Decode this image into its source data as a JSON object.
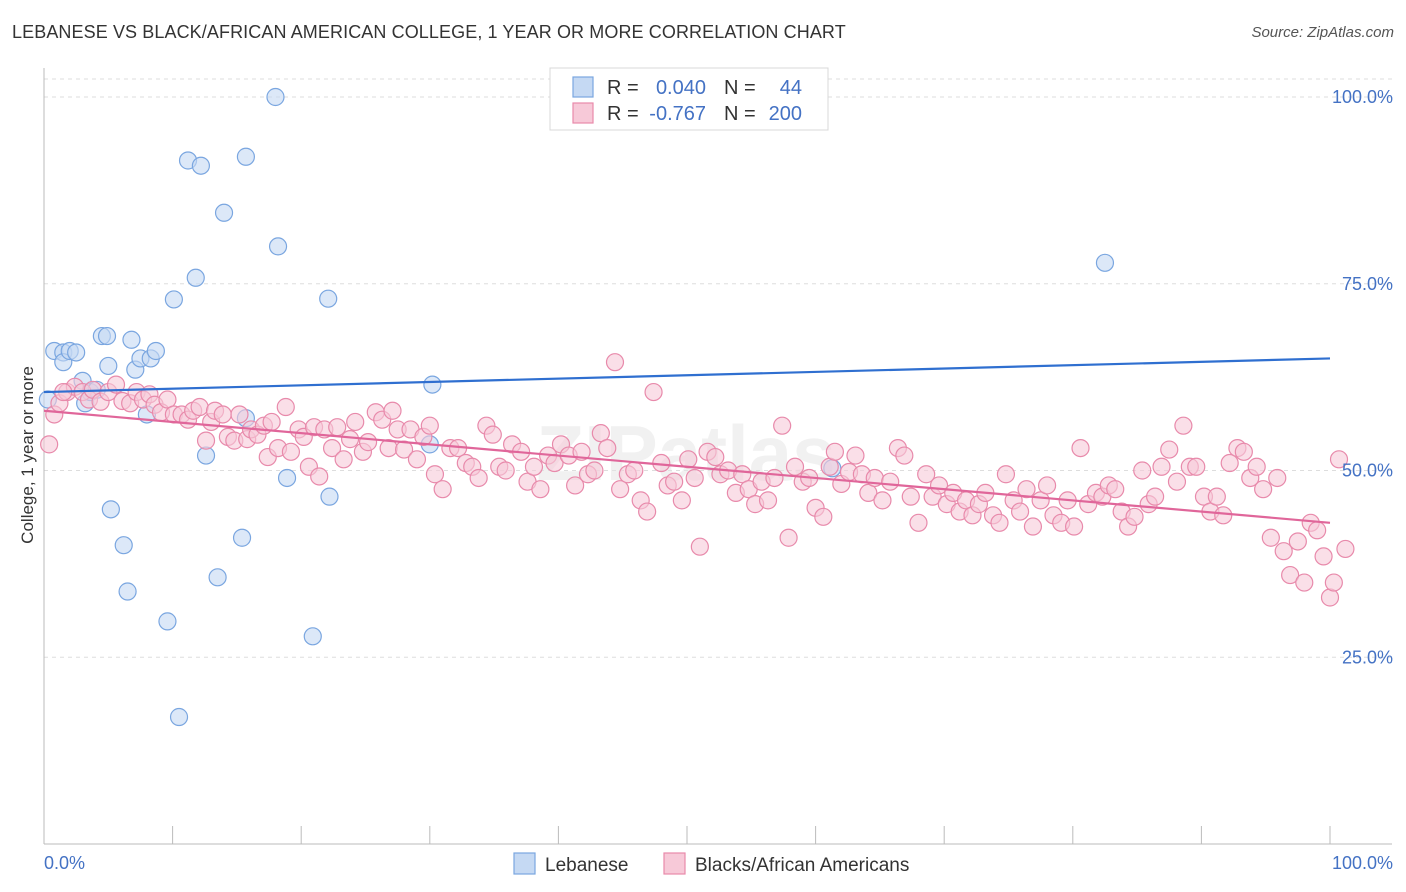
{
  "title": "LEBANESE VS BLACK/AFRICAN AMERICAN COLLEGE, 1 YEAR OR MORE CORRELATION CHART",
  "source": "Source: ZipAtlas.com",
  "watermark": "ZIPatlas",
  "chart_data": {
    "type": "scatter",
    "ylabel": "College, 1 year or more",
    "xlim": [
      0,
      100
    ],
    "ylim": [
      0,
      105
    ],
    "x_ticks": [
      "0.0%",
      "100.0%"
    ],
    "y_ticks": [
      {
        "value": 25,
        "label": "25.0%"
      },
      {
        "value": 50,
        "label": "50.0%"
      },
      {
        "value": 75,
        "label": "75.0%"
      },
      {
        "value": 100,
        "label": "100.0%"
      }
    ],
    "grid": true,
    "legend_position": "top-center",
    "stats": [
      {
        "r_label": "R =",
        "r": "0.040",
        "n_label": "N =",
        "n": "44"
      },
      {
        "r_label": "R =",
        "r": "-0.767",
        "n_label": "N =",
        "n": "200"
      }
    ],
    "series": [
      {
        "name": "Lebanese",
        "color": "#7aa6e0",
        "fill": "#c5d9f3",
        "trend": {
          "color": "#2f6fd0",
          "x": [
            0,
            100
          ],
          "y": [
            60.5,
            65.0
          ]
        },
        "points": [
          [
            0.3,
            59.5
          ],
          [
            0.8,
            66
          ],
          [
            1.5,
            65.8
          ],
          [
            1.5,
            64.5
          ],
          [
            2,
            66
          ],
          [
            2.5,
            65.8
          ],
          [
            3,
            62
          ],
          [
            3.2,
            59
          ],
          [
            3.6,
            60.5
          ],
          [
            4.1,
            60.8
          ],
          [
            4.5,
            68
          ],
          [
            4.9,
            68
          ],
          [
            5,
            64
          ],
          [
            6.8,
            67.5
          ],
          [
            7.1,
            63.5
          ],
          [
            7.5,
            65
          ],
          [
            8,
            57.5
          ],
          [
            8.3,
            65
          ],
          [
            8.7,
            66
          ],
          [
            9.6,
            29.8
          ],
          [
            10.5,
            17
          ],
          [
            11.2,
            91.5
          ],
          [
            12.2,
            90.8
          ],
          [
            11.8,
            75.8
          ],
          [
            10.1,
            72.9
          ],
          [
            12.6,
            52
          ],
          [
            13.5,
            35.7
          ],
          [
            14,
            84.5
          ],
          [
            15.4,
            41
          ],
          [
            15.7,
            57
          ],
          [
            15.7,
            92
          ],
          [
            18,
            100
          ],
          [
            18.2,
            80
          ],
          [
            18.9,
            49
          ],
          [
            20.9,
            27.8
          ],
          [
            22.1,
            73
          ],
          [
            22.2,
            46.5
          ],
          [
            30,
            53.5
          ],
          [
            30.2,
            61.5
          ],
          [
            5.2,
            44.8
          ],
          [
            6.2,
            40
          ],
          [
            6.5,
            33.8
          ],
          [
            61.3,
            50.3
          ],
          [
            82.5,
            77.8
          ]
        ]
      },
      {
        "name": "Blacks/African Americans",
        "color": "#e88aab",
        "fill": "#f7c9d8",
        "trend": {
          "color": "#e0669a",
          "x": [
            0,
            100
          ],
          "y": [
            58,
            43
          ]
        },
        "points": [
          [
            0.4,
            53.5
          ],
          [
            0.8,
            57.5
          ],
          [
            1.2,
            59
          ],
          [
            1.8,
            60.5
          ],
          [
            2.4,
            61.2
          ],
          [
            3,
            60.5
          ],
          [
            3.5,
            59.5
          ],
          [
            3.8,
            60.8
          ],
          [
            4.4,
            59.2
          ],
          [
            5,
            60.5
          ],
          [
            5.6,
            61.5
          ],
          [
            6.1,
            59.3
          ],
          [
            6.7,
            59
          ],
          [
            7.2,
            60.5
          ],
          [
            7.7,
            59.5
          ],
          [
            8.2,
            60.2
          ],
          [
            8.6,
            58.8
          ],
          [
            9.1,
            57.8
          ],
          [
            9.6,
            59.5
          ],
          [
            10.1,
            57.5
          ],
          [
            10.7,
            57.5
          ],
          [
            11.2,
            56.8
          ],
          [
            11.6,
            58
          ],
          [
            12.1,
            58.5
          ],
          [
            12.6,
            54
          ],
          [
            13,
            56.5
          ],
          [
            13.3,
            58
          ],
          [
            13.9,
            57.5
          ],
          [
            14.3,
            54.5
          ],
          [
            14.8,
            54
          ],
          [
            15.2,
            57.5
          ],
          [
            15.8,
            54.2
          ],
          [
            16.1,
            55.5
          ],
          [
            16.6,
            54.8
          ],
          [
            17.1,
            56
          ],
          [
            17.4,
            51.8
          ],
          [
            17.7,
            56.5
          ],
          [
            18.2,
            53
          ],
          [
            18.8,
            58.5
          ],
          [
            19.2,
            52.5
          ],
          [
            19.8,
            55.5
          ],
          [
            20.2,
            54.5
          ],
          [
            20.6,
            50.5
          ],
          [
            21,
            55.8
          ],
          [
            21.4,
            49.2
          ],
          [
            21.8,
            55.5
          ],
          [
            22.4,
            53
          ],
          [
            22.8,
            55.8
          ],
          [
            23.3,
            51.5
          ],
          [
            23.8,
            54.2
          ],
          [
            24.2,
            56.5
          ],
          [
            24.8,
            52.5
          ],
          [
            25.2,
            53.8
          ],
          [
            25.8,
            57.8
          ],
          [
            26.3,
            56.8
          ],
          [
            26.8,
            53
          ],
          [
            27.1,
            58
          ],
          [
            27.5,
            55.5
          ],
          [
            28,
            52.8
          ],
          [
            28.5,
            55.5
          ],
          [
            29,
            51.5
          ],
          [
            29.5,
            54.5
          ],
          [
            30,
            56
          ],
          [
            30.4,
            49.5
          ],
          [
            31,
            47.5
          ],
          [
            31.6,
            53
          ],
          [
            32.2,
            53
          ],
          [
            32.8,
            51
          ],
          [
            33.3,
            50.5
          ],
          [
            33.8,
            49
          ],
          [
            34.4,
            56
          ],
          [
            34.9,
            54.8
          ],
          [
            35.4,
            50.5
          ],
          [
            35.9,
            50
          ],
          [
            36.4,
            53.5
          ],
          [
            37.1,
            52.5
          ],
          [
            37.6,
            48.5
          ],
          [
            38.1,
            50.5
          ],
          [
            38.6,
            47.5
          ],
          [
            39.2,
            52
          ],
          [
            39.7,
            51
          ],
          [
            40.2,
            53.5
          ],
          [
            40.8,
            52
          ],
          [
            41.3,
            48
          ],
          [
            41.8,
            52.5
          ],
          [
            42.3,
            49.5
          ],
          [
            42.8,
            50
          ],
          [
            43.3,
            55
          ],
          [
            43.8,
            53
          ],
          [
            44.4,
            64.5
          ],
          [
            44.8,
            47.5
          ],
          [
            45.4,
            49.5
          ],
          [
            45.9,
            50
          ],
          [
            46.4,
            46
          ],
          [
            46.9,
            44.5
          ],
          [
            47.4,
            60.5
          ],
          [
            48,
            51
          ],
          [
            48.5,
            48
          ],
          [
            49,
            48.5
          ],
          [
            49.6,
            46
          ],
          [
            50.1,
            51.5
          ],
          [
            50.6,
            49
          ],
          [
            51,
            39.8
          ],
          [
            51.6,
            52.5
          ],
          [
            52.2,
            51.8
          ],
          [
            52.6,
            49.5
          ],
          [
            53.2,
            50
          ],
          [
            53.8,
            47
          ],
          [
            54.3,
            49.5
          ],
          [
            54.8,
            47.5
          ],
          [
            55.3,
            45.5
          ],
          [
            55.8,
            48.5
          ],
          [
            56.3,
            46
          ],
          [
            56.8,
            49
          ],
          [
            57.4,
            56
          ],
          [
            57.9,
            41
          ],
          [
            58.4,
            50.5
          ],
          [
            59,
            48.5
          ],
          [
            59.5,
            49
          ],
          [
            60,
            45
          ],
          [
            60.6,
            43.8
          ],
          [
            61.1,
            50.5
          ],
          [
            61.5,
            52.5
          ],
          [
            62,
            48.2
          ],
          [
            62.6,
            49.8
          ],
          [
            63.1,
            52
          ],
          [
            63.6,
            49.5
          ],
          [
            64.1,
            47
          ],
          [
            64.6,
            49
          ],
          [
            65.2,
            46
          ],
          [
            65.8,
            48.5
          ],
          [
            66.4,
            53
          ],
          [
            66.9,
            52
          ],
          [
            67.4,
            46.5
          ],
          [
            68,
            43
          ],
          [
            68.6,
            49.5
          ],
          [
            69.1,
            46.5
          ],
          [
            69.6,
            48
          ],
          [
            70.2,
            45.5
          ],
          [
            70.7,
            47
          ],
          [
            71.2,
            44.5
          ],
          [
            71.7,
            46
          ],
          [
            72.2,
            44
          ],
          [
            72.7,
            45.5
          ],
          [
            73.2,
            47
          ],
          [
            73.8,
            44
          ],
          [
            74.3,
            43
          ],
          [
            74.8,
            49.5
          ],
          [
            75.4,
            46
          ],
          [
            75.9,
            44.5
          ],
          [
            76.4,
            47.5
          ],
          [
            76.9,
            42.5
          ],
          [
            77.5,
            46
          ],
          [
            78,
            48
          ],
          [
            78.5,
            44
          ],
          [
            79.1,
            43
          ],
          [
            79.6,
            46
          ],
          [
            80.1,
            42.5
          ],
          [
            80.6,
            53
          ],
          [
            81.2,
            45.5
          ],
          [
            81.8,
            47
          ],
          [
            82.3,
            46.5
          ],
          [
            82.8,
            48
          ],
          [
            83.3,
            47.5
          ],
          [
            83.8,
            44.5
          ],
          [
            84.3,
            42.5
          ],
          [
            84.8,
            43.8
          ],
          [
            85.4,
            50
          ],
          [
            85.9,
            45.5
          ],
          [
            86.4,
            46.5
          ],
          [
            86.9,
            50.5
          ],
          [
            87.5,
            52.8
          ],
          [
            88.1,
            48.5
          ],
          [
            88.6,
            56
          ],
          [
            89.1,
            50.5
          ],
          [
            89.6,
            50.5
          ],
          [
            90.2,
            46.5
          ],
          [
            90.7,
            44.5
          ],
          [
            91.2,
            46.5
          ],
          [
            91.7,
            44
          ],
          [
            92.2,
            51
          ],
          [
            92.8,
            53
          ],
          [
            93.3,
            52.5
          ],
          [
            93.8,
            49
          ],
          [
            94.3,
            50.5
          ],
          [
            94.8,
            47.5
          ],
          [
            95.4,
            41
          ],
          [
            95.9,
            49
          ],
          [
            96.4,
            39.2
          ],
          [
            96.9,
            36
          ],
          [
            97.5,
            40.5
          ],
          [
            98,
            35
          ],
          [
            98.5,
            43
          ],
          [
            99,
            42
          ],
          [
            99.5,
            38.5
          ],
          [
            100,
            33
          ],
          [
            100.3,
            35
          ],
          [
            100.7,
            51.5
          ],
          [
            101.2,
            39.5
          ],
          [
            1.5,
            60.5
          ]
        ]
      }
    ]
  }
}
